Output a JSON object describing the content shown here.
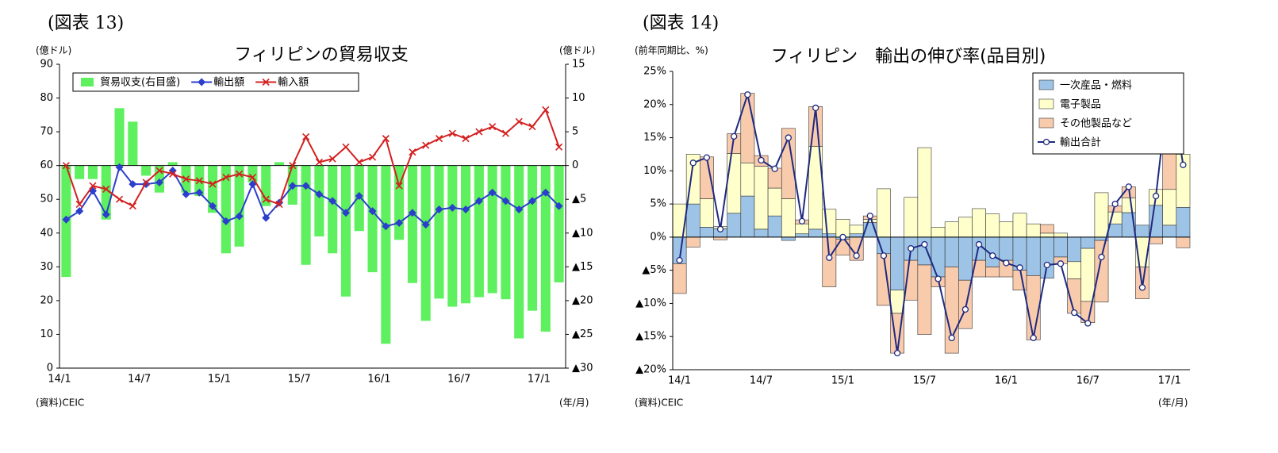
{
  "chart_data": [
    {
      "type": "bar_line",
      "figure_label": "(図表 13)",
      "title": "フィリピンの貿易収支",
      "y_label": "(億ドル)",
      "y2_label": "(億ドル)",
      "source": "(資料)CEIC",
      "x_unit": "(年/月)",
      "legend": "upper left",
      "categories": [
        "14/1",
        null,
        null,
        null,
        null,
        null,
        "14/7",
        null,
        null,
        null,
        null,
        null,
        "15/1",
        null,
        null,
        null,
        null,
        null,
        "15/7",
        null,
        null,
        null,
        null,
        null,
        "16/1",
        null,
        null,
        null,
        null,
        null,
        "16/7",
        null,
        null,
        null,
        null,
        null,
        "17/1",
        null
      ],
      "ylim": [
        0,
        90
      ],
      "yticks": [
        0,
        10,
        20,
        30,
        40,
        50,
        60,
        70,
        80,
        90
      ],
      "y2lim": [
        -30,
        15
      ],
      "y2ticks": [
        15,
        10,
        5,
        0,
        {
          "value": -5,
          "label": "▲5"
        },
        {
          "value": -10,
          "label": "▲10"
        },
        {
          "value": -15,
          "label": "▲15"
        },
        {
          "value": -20,
          "label": "▲20"
        },
        {
          "value": -25,
          "label": "▲25"
        },
        {
          "value": -30,
          "label": "▲30"
        }
      ],
      "series": [
        {
          "name": "貿易収支(右目盛)",
          "kind": "bar",
          "axis": "y2",
          "color": "#5ef05e",
          "values": [
            -16.5,
            -2,
            -2,
            -8,
            8.5,
            6.5,
            -1.5,
            -4,
            0.5,
            -4,
            -4.5,
            -7,
            -13,
            -12,
            -2.5,
            -6,
            0.5,
            -5.8,
            -14.7,
            -10.5,
            -13,
            -19.4,
            -9.7,
            -15.8,
            -26.4,
            -11,
            -17.4,
            -23,
            -19.7,
            -20.9,
            -20.4,
            -19.5,
            -18.9,
            -19.8,
            -25.6,
            -21.5,
            -24.6,
            -17.3
          ]
        },
        {
          "name": "輸出額",
          "kind": "line",
          "marker": "diamond",
          "color": "#2b3fcc",
          "values": [
            44,
            46.5,
            52.5,
            45.5,
            59.5,
            54.5,
            54.5,
            55,
            58.5,
            51.5,
            52,
            48,
            43.5,
            45,
            54.5,
            44.5,
            49,
            54,
            54,
            51.5,
            49.5,
            46,
            51,
            46.5,
            42,
            43,
            46,
            42.5,
            47,
            47.5,
            47,
            49.5,
            52,
            49.5,
            47,
            49.5,
            52,
            48
          ]
        },
        {
          "name": "輸入額",
          "kind": "line",
          "marker": "x",
          "color": "#d42020",
          "values": [
            60,
            48.5,
            54,
            53,
            50,
            48,
            55,
            58.5,
            57.5,
            56,
            55.5,
            54.5,
            56.5,
            57.5,
            56.5,
            50,
            48.5,
            60,
            68.5,
            61,
            62,
            65.5,
            61,
            62.5,
            68,
            54,
            64,
            66,
            68,
            69.5,
            68,
            70,
            71.5,
            69.5,
            73,
            71.5,
            76.5,
            65.5
          ]
        }
      ]
    },
    {
      "type": "stacked_bar_line",
      "figure_label": "(図表 14)",
      "title": "フィリピン　輸出の伸び率(品目別)",
      "y_label": "(前年同期比、%)",
      "source": "(資料)CEIC",
      "x_unit": "(年/月)",
      "legend": "upper right",
      "categories": [
        "14/1",
        null,
        null,
        null,
        null,
        null,
        "14/7",
        null,
        null,
        null,
        null,
        null,
        "15/1",
        null,
        null,
        null,
        null,
        null,
        "15/7",
        null,
        null,
        null,
        null,
        null,
        "16/1",
        null,
        null,
        null,
        null,
        null,
        "16/7",
        null,
        null,
        null,
        null,
        null,
        "17/1",
        null
      ],
      "ylim": [
        -20,
        25
      ],
      "yticks": [
        {
          "value": 25,
          "label": "25%"
        },
        {
          "value": 20,
          "label": "20%"
        },
        {
          "value": 15,
          "label": "15%"
        },
        {
          "value": 10,
          "label": "10%"
        },
        {
          "value": 5,
          "label": "5%"
        },
        {
          "value": 0,
          "label": "0%"
        },
        {
          "value": -5,
          "label": "▲5%"
        },
        {
          "value": -10,
          "label": "▲10%"
        },
        {
          "value": -15,
          "label": "▲15%"
        },
        {
          "value": -20,
          "label": "▲20%"
        }
      ],
      "series": [
        {
          "name": "一次産品・燃料",
          "kind": "bar",
          "color": "#9dc3e6",
          "values": [
            -4,
            5,
            1.5,
            1.3,
            3.6,
            6.2,
            1.2,
            3.2,
            -0.5,
            0.5,
            1.2,
            0.5,
            -0.3,
            0.5,
            2.2,
            -2.5,
            -8,
            -3.5,
            -4.2,
            -6,
            -4.5,
            -6.5,
            -3.5,
            -4.5,
            -3.5,
            -5,
            -5.8,
            -6.2,
            -3,
            -3.7,
            -1.7,
            -0.5,
            2,
            3.7,
            1.8,
            4.8,
            1.8,
            4.5
          ]
        },
        {
          "name": "電子製品",
          "kind": "bar",
          "color": "#ffffcc",
          "values": [
            5,
            7.5,
            4.3,
            0.3,
            9,
            5,
            9.5,
            4.2,
            5.8,
            1.5,
            12.5,
            3.7,
            2.7,
            1.3,
            0.5,
            7.3,
            -3.5,
            6,
            13.5,
            1.5,
            2.3,
            3,
            4.3,
            3.5,
            2.3,
            3.6,
            2,
            0.6,
            0.6,
            -2.6,
            -8,
            6.7,
            1.8,
            2.2,
            -4.5,
            2.4,
            5.4,
            8
          ]
        },
        {
          "name": "その他製品など",
          "kind": "bar",
          "color": "#f8cbad",
          "values": [
            -4.5,
            -1.5,
            6.3,
            -0.4,
            3,
            10.5,
            1.6,
            3,
            10.6,
            0.6,
            6,
            -7.5,
            -2.4,
            -3.5,
            0.5,
            -7.8,
            -6,
            -6,
            -10.5,
            -1.5,
            -13,
            -7.3,
            -2.5,
            -1.5,
            -2.5,
            -3,
            -9.7,
            1.3,
            -1,
            -5.2,
            -3.2,
            -9.3,
            0.9,
            1.7,
            -4.8,
            -1,
            16.8,
            -1.6
          ]
        },
        {
          "name": "輸出合計",
          "kind": "line",
          "marker": "circle",
          "color": "#1f2a80",
          "values": [
            -3.5,
            11.2,
            12,
            1.2,
            15.2,
            21.5,
            11.6,
            10.3,
            15,
            2.4,
            19.5,
            -3.1,
            0,
            -2.8,
            3.2,
            -2.8,
            -17.5,
            -1.7,
            -1.1,
            -6.3,
            -15.2,
            -10.9,
            -1.1,
            -2.8,
            -3.9,
            -4.6,
            -15.2,
            -4.2,
            -4,
            -11.4,
            -13,
            -3,
            5,
            7.6,
            -7.6,
            6.2,
            24,
            10.9
          ]
        }
      ]
    }
  ]
}
